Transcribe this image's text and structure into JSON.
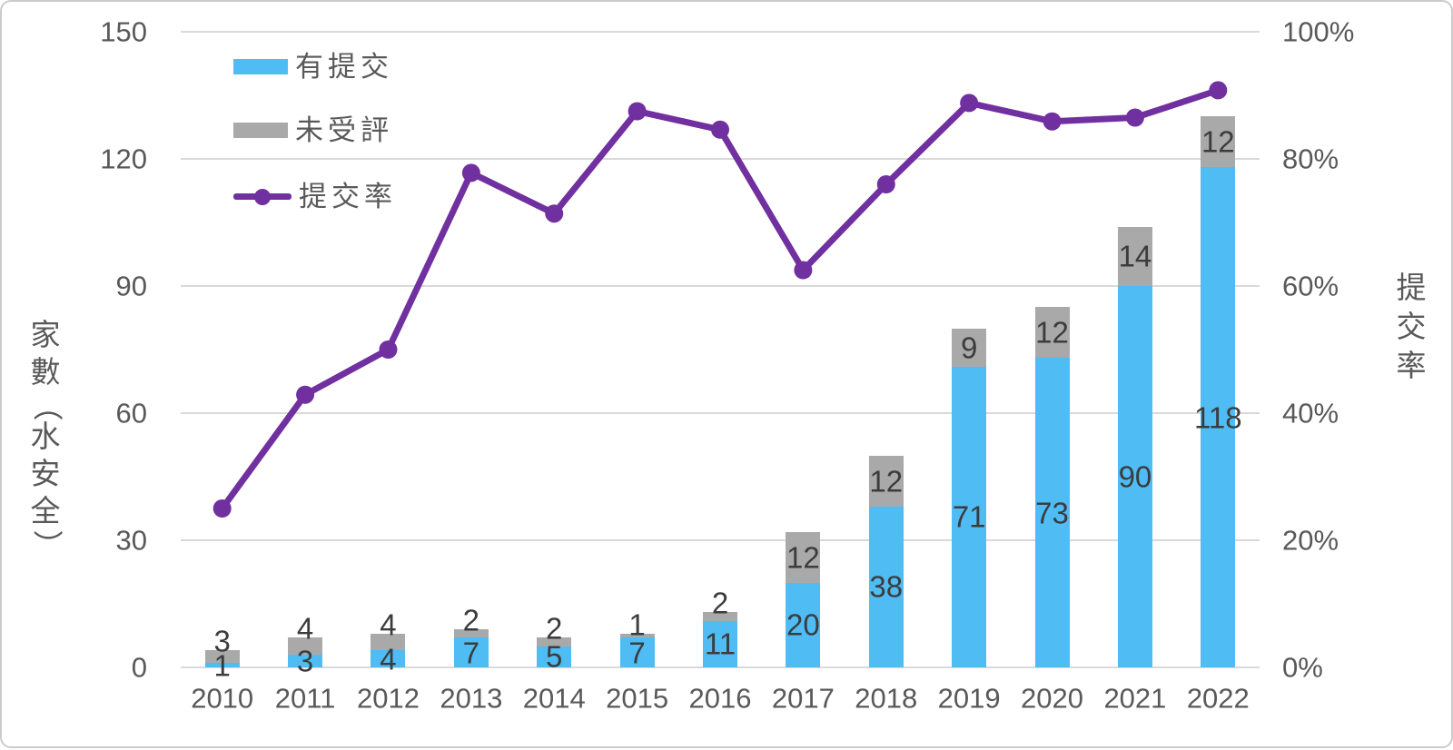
{
  "chart_data": {
    "type": "bar",
    "subtype": "stacked-bar-with-line",
    "title": "",
    "categories": [
      "2010",
      "2011",
      "2012",
      "2013",
      "2014",
      "2015",
      "2016",
      "2017",
      "2018",
      "2019",
      "2020",
      "2021",
      "2022"
    ],
    "series": [
      {
        "name": "有提交",
        "type": "bar",
        "color": "#4fbcf4",
        "values": [
          1,
          3,
          4,
          7,
          5,
          7,
          11,
          20,
          38,
          71,
          73,
          90,
          118
        ]
      },
      {
        "name": "未受評",
        "type": "bar",
        "color": "#a9a9a9",
        "values": [
          3,
          4,
          4,
          2,
          2,
          1,
          2,
          12,
          12,
          9,
          12,
          14,
          12
        ]
      },
      {
        "name": "提交率",
        "type": "line",
        "color": "#7030a0",
        "axis": "right",
        "unit": "%",
        "values": [
          25.0,
          42.9,
          50.0,
          77.8,
          71.4,
          87.5,
          84.6,
          62.5,
          76.0,
          88.8,
          85.9,
          86.5,
          90.8
        ]
      }
    ],
    "left_axis": {
      "title": "家數（水安全）",
      "ticks": [
        "0",
        "30",
        "60",
        "90",
        "120",
        "150"
      ],
      "range": [
        0,
        150
      ]
    },
    "right_axis": {
      "title": "提交率",
      "ticks": [
        "0%",
        "20%",
        "40%",
        "60%",
        "80%",
        "100%"
      ],
      "range": [
        0,
        100
      ]
    },
    "legend": {
      "position": "top-left",
      "entries": [
        "有提交",
        "未受評",
        "提交率"
      ]
    },
    "grid": true,
    "colors": {
      "gridline": "#d9d9d9",
      "axis_text": "#595959",
      "data_label": "#3c3c3c"
    }
  }
}
